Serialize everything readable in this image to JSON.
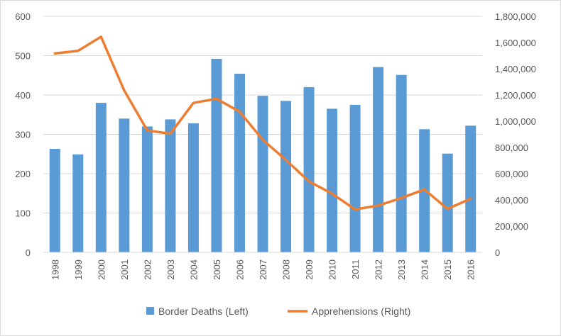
{
  "chart_data": {
    "type": "bar+line",
    "categories": [
      "1998",
      "1999",
      "2000",
      "2001",
      "2002",
      "2003",
      "2004",
      "2005",
      "2006",
      "2007",
      "2008",
      "2009",
      "2010",
      "2011",
      "2012",
      "2013",
      "2014",
      "2015",
      "2016"
    ],
    "series": [
      {
        "name": "Border Deaths (Left)",
        "type": "bar",
        "axis": "left",
        "color": "#5b9bd5",
        "values": [
          263,
          249,
          380,
          340,
          320,
          338,
          328,
          492,
          454,
          398,
          385,
          420,
          365,
          375,
          471,
          451,
          313,
          251,
          322
        ]
      },
      {
        "name": "Apprehensions (Right)",
        "type": "line",
        "axis": "right",
        "color": "#ed7d31",
        "values": [
          1516680,
          1537000,
          1643679,
          1235718,
          929809,
          905065,
          1139282,
          1171396,
          1071972,
          858638,
          705005,
          540865,
          447731,
          327577,
          356873,
          414397,
          479371,
          331333,
          408870
        ]
      }
    ],
    "y_left": {
      "min": 0,
      "max": 600,
      "ticks": [
        "0",
        "100",
        "200",
        "300",
        "400",
        "500",
        "600"
      ]
    },
    "y_right": {
      "min": 0,
      "max": 1800000,
      "ticks": [
        "0",
        "200,000",
        "400,000",
        "600,000",
        "800,000",
        "1,000,000",
        "1,200,000",
        "1,400,000",
        "1,600,000",
        "1,800,000"
      ]
    },
    "grid": true,
    "legend_position": "bottom"
  },
  "colors": {
    "grid": "#d9d9d9",
    "text": "#595959"
  }
}
